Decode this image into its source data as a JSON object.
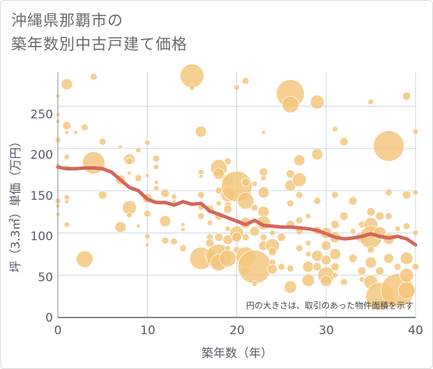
{
  "chart_data": {
    "type": "scatter",
    "title_lines": [
      "沖縄県那覇市の",
      "築年数別中古戸建て価格"
    ],
    "xlabel": "築年数（年）",
    "ylabel": "坪（3.3㎡）単価（万円）",
    "xlim": [
      0,
      40
    ],
    "ylim": [
      0,
      290
    ],
    "x_ticks": [
      "0",
      "10",
      "20",
      "30",
      "40"
    ],
    "y_ticks": [
      "0",
      "50",
      "100",
      "150",
      "200",
      "250"
    ],
    "annotation": "円の大きさは、取引のあった物件面積を示す",
    "grid": true,
    "colors": {
      "bubble": "#f3c57a",
      "line": "#d4675a",
      "grid": "#c9d6e3"
    },
    "series": [
      {
        "type": "bubble",
        "points": [
          {
            "x": 0,
            "y": 262,
            "s": 3
          },
          {
            "x": 0,
            "y": 240,
            "s": 3
          },
          {
            "x": 0,
            "y": 232,
            "s": 3
          },
          {
            "x": 0,
            "y": 210,
            "s": 4
          },
          {
            "x": 0,
            "y": 180,
            "s": 3
          },
          {
            "x": 0,
            "y": 138,
            "s": 4
          },
          {
            "x": 0,
            "y": 132,
            "s": 3
          },
          {
            "x": 0,
            "y": 122,
            "s": 3
          },
          {
            "x": 1,
            "y": 276,
            "s": 8
          },
          {
            "x": 1,
            "y": 227,
            "s": 6
          },
          {
            "x": 1,
            "y": 219,
            "s": 3
          },
          {
            "x": 1,
            "y": 190,
            "s": 4
          },
          {
            "x": 1,
            "y": 177,
            "s": 4
          },
          {
            "x": 1,
            "y": 142,
            "s": 4
          },
          {
            "x": 1,
            "y": 137,
            "s": 3
          },
          {
            "x": 1,
            "y": 110,
            "s": 4
          },
          {
            "x": 2,
            "y": 219,
            "s": 3
          },
          {
            "x": 3,
            "y": 225,
            "s": 5
          },
          {
            "x": 3,
            "y": 69,
            "s": 12
          },
          {
            "x": 4,
            "y": 285,
            "s": 5
          },
          {
            "x": 4,
            "y": 183,
            "s": 16
          },
          {
            "x": 5,
            "y": 208,
            "s": 5
          },
          {
            "x": 5,
            "y": 145,
            "s": 6
          },
          {
            "x": 7,
            "y": 202,
            "s": 3
          },
          {
            "x": 7,
            "y": 163,
            "s": 7
          },
          {
            "x": 7,
            "y": 107,
            "s": 8
          },
          {
            "x": 8,
            "y": 187,
            "s": 8
          },
          {
            "x": 8,
            "y": 185,
            "s": 5
          },
          {
            "x": 8,
            "y": 171,
            "s": 3
          },
          {
            "x": 8,
            "y": 130,
            "s": 10
          },
          {
            "x": 8,
            "y": 121,
            "s": 4
          },
          {
            "x": 9,
            "y": 198,
            "s": 4
          },
          {
            "x": 9,
            "y": 165,
            "s": 5
          },
          {
            "x": 9,
            "y": 108,
            "s": 3
          },
          {
            "x": 10,
            "y": 207,
            "s": 4
          },
          {
            "x": 10,
            "y": 168,
            "s": 3
          },
          {
            "x": 10,
            "y": 141,
            "s": 7
          },
          {
            "x": 10,
            "y": 123,
            "s": 5
          },
          {
            "x": 10,
            "y": 96,
            "s": 4
          },
          {
            "x": 10,
            "y": 86,
            "s": 3
          },
          {
            "x": 11,
            "y": 188,
            "s": 5
          },
          {
            "x": 11,
            "y": 178,
            "s": 4
          },
          {
            "x": 11,
            "y": 160,
            "s": 3
          },
          {
            "x": 11,
            "y": 153,
            "s": 4
          },
          {
            "x": 12,
            "y": 147,
            "s": 6
          },
          {
            "x": 12,
            "y": 114,
            "s": 8
          },
          {
            "x": 12,
            "y": 91,
            "s": 5
          },
          {
            "x": 13,
            "y": 143,
            "s": 4
          },
          {
            "x": 13,
            "y": 137,
            "s": 3
          },
          {
            "x": 13,
            "y": 90,
            "s": 5
          },
          {
            "x": 14,
            "y": 110,
            "s": 3
          },
          {
            "x": 14,
            "y": 104,
            "s": 3
          },
          {
            "x": 14,
            "y": 82,
            "s": 5
          },
          {
            "x": 15,
            "y": 286,
            "s": 17
          },
          {
            "x": 15,
            "y": 272,
            "s": 4
          },
          {
            "x": 16,
            "y": 220,
            "s": 8
          },
          {
            "x": 16,
            "y": 172,
            "s": 4
          },
          {
            "x": 16,
            "y": 167,
            "s": 3
          },
          {
            "x": 16,
            "y": 145,
            "s": 5
          },
          {
            "x": 16,
            "y": 130,
            "s": 4
          },
          {
            "x": 16,
            "y": 120,
            "s": 5
          },
          {
            "x": 16,
            "y": 70,
            "s": 16
          },
          {
            "x": 17,
            "y": 128,
            "s": 6
          },
          {
            "x": 17,
            "y": 112,
            "s": 4
          },
          {
            "x": 17,
            "y": 95,
            "s": 5
          },
          {
            "x": 17,
            "y": 88,
            "s": 6
          },
          {
            "x": 17,
            "y": 75,
            "s": 8
          },
          {
            "x": 18,
            "y": 177,
            "s": 12
          },
          {
            "x": 18,
            "y": 170,
            "s": 8
          },
          {
            "x": 18,
            "y": 150,
            "s": 5
          },
          {
            "x": 18,
            "y": 135,
            "s": 4
          },
          {
            "x": 18,
            "y": 120,
            "s": 6
          },
          {
            "x": 18,
            "y": 95,
            "s": 6
          },
          {
            "x": 18,
            "y": 72,
            "s": 18
          },
          {
            "x": 18,
            "y": 65,
            "s": 12
          },
          {
            "x": 19,
            "y": 185,
            "s": 5
          },
          {
            "x": 19,
            "y": 163,
            "s": 8
          },
          {
            "x": 19,
            "y": 145,
            "s": 10
          },
          {
            "x": 19,
            "y": 133,
            "s": 5
          },
          {
            "x": 19,
            "y": 128,
            "s": 6
          },
          {
            "x": 19,
            "y": 105,
            "s": 4
          },
          {
            "x": 19,
            "y": 92,
            "s": 7
          },
          {
            "x": 19,
            "y": 82,
            "s": 4
          },
          {
            "x": 19,
            "y": 70,
            "s": 12
          },
          {
            "x": 20,
            "y": 272,
            "s": 4
          },
          {
            "x": 20,
            "y": 155,
            "s": 22
          },
          {
            "x": 20,
            "y": 100,
            "s": 10
          },
          {
            "x": 20,
            "y": 95,
            "s": 7
          },
          {
            "x": 20,
            "y": 80,
            "s": 5
          },
          {
            "x": 21,
            "y": 280,
            "s": 5
          },
          {
            "x": 21,
            "y": 160,
            "s": 6
          },
          {
            "x": 21,
            "y": 138,
            "s": 12
          },
          {
            "x": 21,
            "y": 112,
            "s": 8
          },
          {
            "x": 21,
            "y": 95,
            "s": 5
          },
          {
            "x": 21,
            "y": 72,
            "s": 14
          },
          {
            "x": 21,
            "y": 55,
            "s": 6
          },
          {
            "x": 22,
            "y": 158,
            "s": 4
          },
          {
            "x": 22,
            "y": 130,
            "s": 5
          },
          {
            "x": 22,
            "y": 102,
            "s": 7
          },
          {
            "x": 22,
            "y": 60,
            "s": 24
          },
          {
            "x": 22,
            "y": 40,
            "s": 4
          },
          {
            "x": 23,
            "y": 219,
            "s": 3
          },
          {
            "x": 23,
            "y": 172,
            "s": 6
          },
          {
            "x": 23,
            "y": 165,
            "s": 4
          },
          {
            "x": 23,
            "y": 148,
            "s": 8
          },
          {
            "x": 23,
            "y": 125,
            "s": 8
          },
          {
            "x": 23,
            "y": 112,
            "s": 10
          },
          {
            "x": 23,
            "y": 95,
            "s": 5
          },
          {
            "x": 23,
            "y": 85,
            "s": 7
          },
          {
            "x": 24,
            "y": 100,
            "s": 4
          },
          {
            "x": 24,
            "y": 85,
            "s": 10
          },
          {
            "x": 24,
            "y": 78,
            "s": 6
          },
          {
            "x": 24,
            "y": 65,
            "s": 5
          },
          {
            "x": 24,
            "y": 57,
            "s": 7
          },
          {
            "x": 25,
            "y": 95,
            "s": 6
          },
          {
            "x": 25,
            "y": 60,
            "s": 5
          },
          {
            "x": 26,
            "y": 265,
            "s": 20
          },
          {
            "x": 26,
            "y": 252,
            "s": 12
          },
          {
            "x": 26,
            "y": 170,
            "s": 6
          },
          {
            "x": 26,
            "y": 156,
            "s": 8
          },
          {
            "x": 26,
            "y": 135,
            "s": 5
          },
          {
            "x": 26,
            "y": 110,
            "s": 6
          },
          {
            "x": 26,
            "y": 58,
            "s": 5
          },
          {
            "x": 26,
            "y": 36,
            "s": 9
          },
          {
            "x": 27,
            "y": 186,
            "s": 8
          },
          {
            "x": 27,
            "y": 163,
            "s": 10
          },
          {
            "x": 27,
            "y": 145,
            "s": 5
          },
          {
            "x": 27,
            "y": 115,
            "s": 5
          },
          {
            "x": 27,
            "y": 102,
            "s": 5
          },
          {
            "x": 27,
            "y": 82,
            "s": 5
          },
          {
            "x": 28,
            "y": 120,
            "s": 4
          },
          {
            "x": 28,
            "y": 88,
            "s": 4
          },
          {
            "x": 28,
            "y": 75,
            "s": 4
          },
          {
            "x": 28,
            "y": 60,
            "s": 8
          },
          {
            "x": 28,
            "y": 44,
            "s": 9
          },
          {
            "x": 29,
            "y": 255,
            "s": 10
          },
          {
            "x": 29,
            "y": 193,
            "s": 8
          },
          {
            "x": 29,
            "y": 138,
            "s": 5
          },
          {
            "x": 29,
            "y": 103,
            "s": 6
          },
          {
            "x": 29,
            "y": 73,
            "s": 8
          },
          {
            "x": 29,
            "y": 60,
            "s": 6
          },
          {
            "x": 30,
            "y": 100,
            "s": 8
          },
          {
            "x": 30,
            "y": 85,
            "s": 7
          },
          {
            "x": 30,
            "y": 68,
            "s": 7
          },
          {
            "x": 30,
            "y": 50,
            "s": 12
          },
          {
            "x": 30,
            "y": 43,
            "s": 8
          },
          {
            "x": 31,
            "y": 223,
            "s": 4
          },
          {
            "x": 31,
            "y": 145,
            "s": 5
          },
          {
            "x": 31,
            "y": 110,
            "s": 6
          },
          {
            "x": 31,
            "y": 95,
            "s": 8
          },
          {
            "x": 31,
            "y": 75,
            "s": 8
          },
          {
            "x": 31,
            "y": 60,
            "s": 6
          },
          {
            "x": 31,
            "y": 50,
            "s": 4
          },
          {
            "x": 32,
            "y": 208,
            "s": 6
          },
          {
            "x": 32,
            "y": 120,
            "s": 6
          },
          {
            "x": 32,
            "y": 42,
            "s": 5
          },
          {
            "x": 33,
            "y": 138,
            "s": 6
          },
          {
            "x": 33,
            "y": 102,
            "s": 4
          },
          {
            "x": 33,
            "y": 70,
            "s": 6
          },
          {
            "x": 34,
            "y": 110,
            "s": 5
          },
          {
            "x": 34,
            "y": 95,
            "s": 8
          },
          {
            "x": 34,
            "y": 55,
            "s": 6
          },
          {
            "x": 34,
            "y": 45,
            "s": 4
          },
          {
            "x": 35,
            "y": 255,
            "s": 4
          },
          {
            "x": 35,
            "y": 125,
            "s": 6
          },
          {
            "x": 35,
            "y": 110,
            "s": 10
          },
          {
            "x": 35,
            "y": 95,
            "s": 16
          },
          {
            "x": 35,
            "y": 80,
            "s": 5
          },
          {
            "x": 35,
            "y": 65,
            "s": 8
          },
          {
            "x": 35,
            "y": 42,
            "s": 10
          },
          {
            "x": 36,
            "y": 120,
            "s": 6
          },
          {
            "x": 36,
            "y": 100,
            "s": 9
          },
          {
            "x": 36,
            "y": 55,
            "s": 6
          },
          {
            "x": 36,
            "y": 25,
            "s": 20
          },
          {
            "x": 37,
            "y": 203,
            "s": 22
          },
          {
            "x": 37,
            "y": 148,
            "s": 5
          },
          {
            "x": 37,
            "y": 120,
            "s": 5
          },
          {
            "x": 37,
            "y": 93,
            "s": 8
          },
          {
            "x": 37,
            "y": 70,
            "s": 7
          },
          {
            "x": 38,
            "y": 105,
            "s": 4
          },
          {
            "x": 38,
            "y": 60,
            "s": 5
          },
          {
            "x": 38,
            "y": 32,
            "s": 24
          },
          {
            "x": 39,
            "y": 262,
            "s": 6
          },
          {
            "x": 39,
            "y": 145,
            "s": 6
          },
          {
            "x": 39,
            "y": 108,
            "s": 5
          },
          {
            "x": 39,
            "y": 70,
            "s": 9
          },
          {
            "x": 39,
            "y": 50,
            "s": 10
          },
          {
            "x": 39,
            "y": 32,
            "s": 12
          },
          {
            "x": 40,
            "y": 220,
            "s": 4
          },
          {
            "x": 40,
            "y": 148,
            "s": 4
          },
          {
            "x": 40,
            "y": 100,
            "s": 4
          },
          {
            "x": 40,
            "y": 60,
            "s": 5
          }
        ]
      },
      {
        "type": "line",
        "x": [
          0,
          1,
          2,
          3,
          4,
          5,
          6,
          7,
          8,
          9,
          10,
          11,
          12,
          13,
          14,
          15,
          16,
          17,
          18,
          19,
          20,
          21,
          22,
          23,
          24,
          25,
          26,
          27,
          28,
          29,
          30,
          31,
          32,
          33,
          34,
          35,
          36,
          37,
          38,
          39,
          40
        ],
        "values": [
          178,
          176,
          176,
          177,
          177,
          176,
          172,
          163,
          154,
          150,
          140,
          136,
          136,
          133,
          137,
          134,
          135,
          126,
          122,
          118,
          114,
          110,
          115,
          109,
          108,
          107,
          107,
          106,
          105,
          103,
          99,
          95,
          93,
          94,
          96,
          99,
          96,
          94,
          96,
          93,
          86
        ]
      }
    ]
  }
}
